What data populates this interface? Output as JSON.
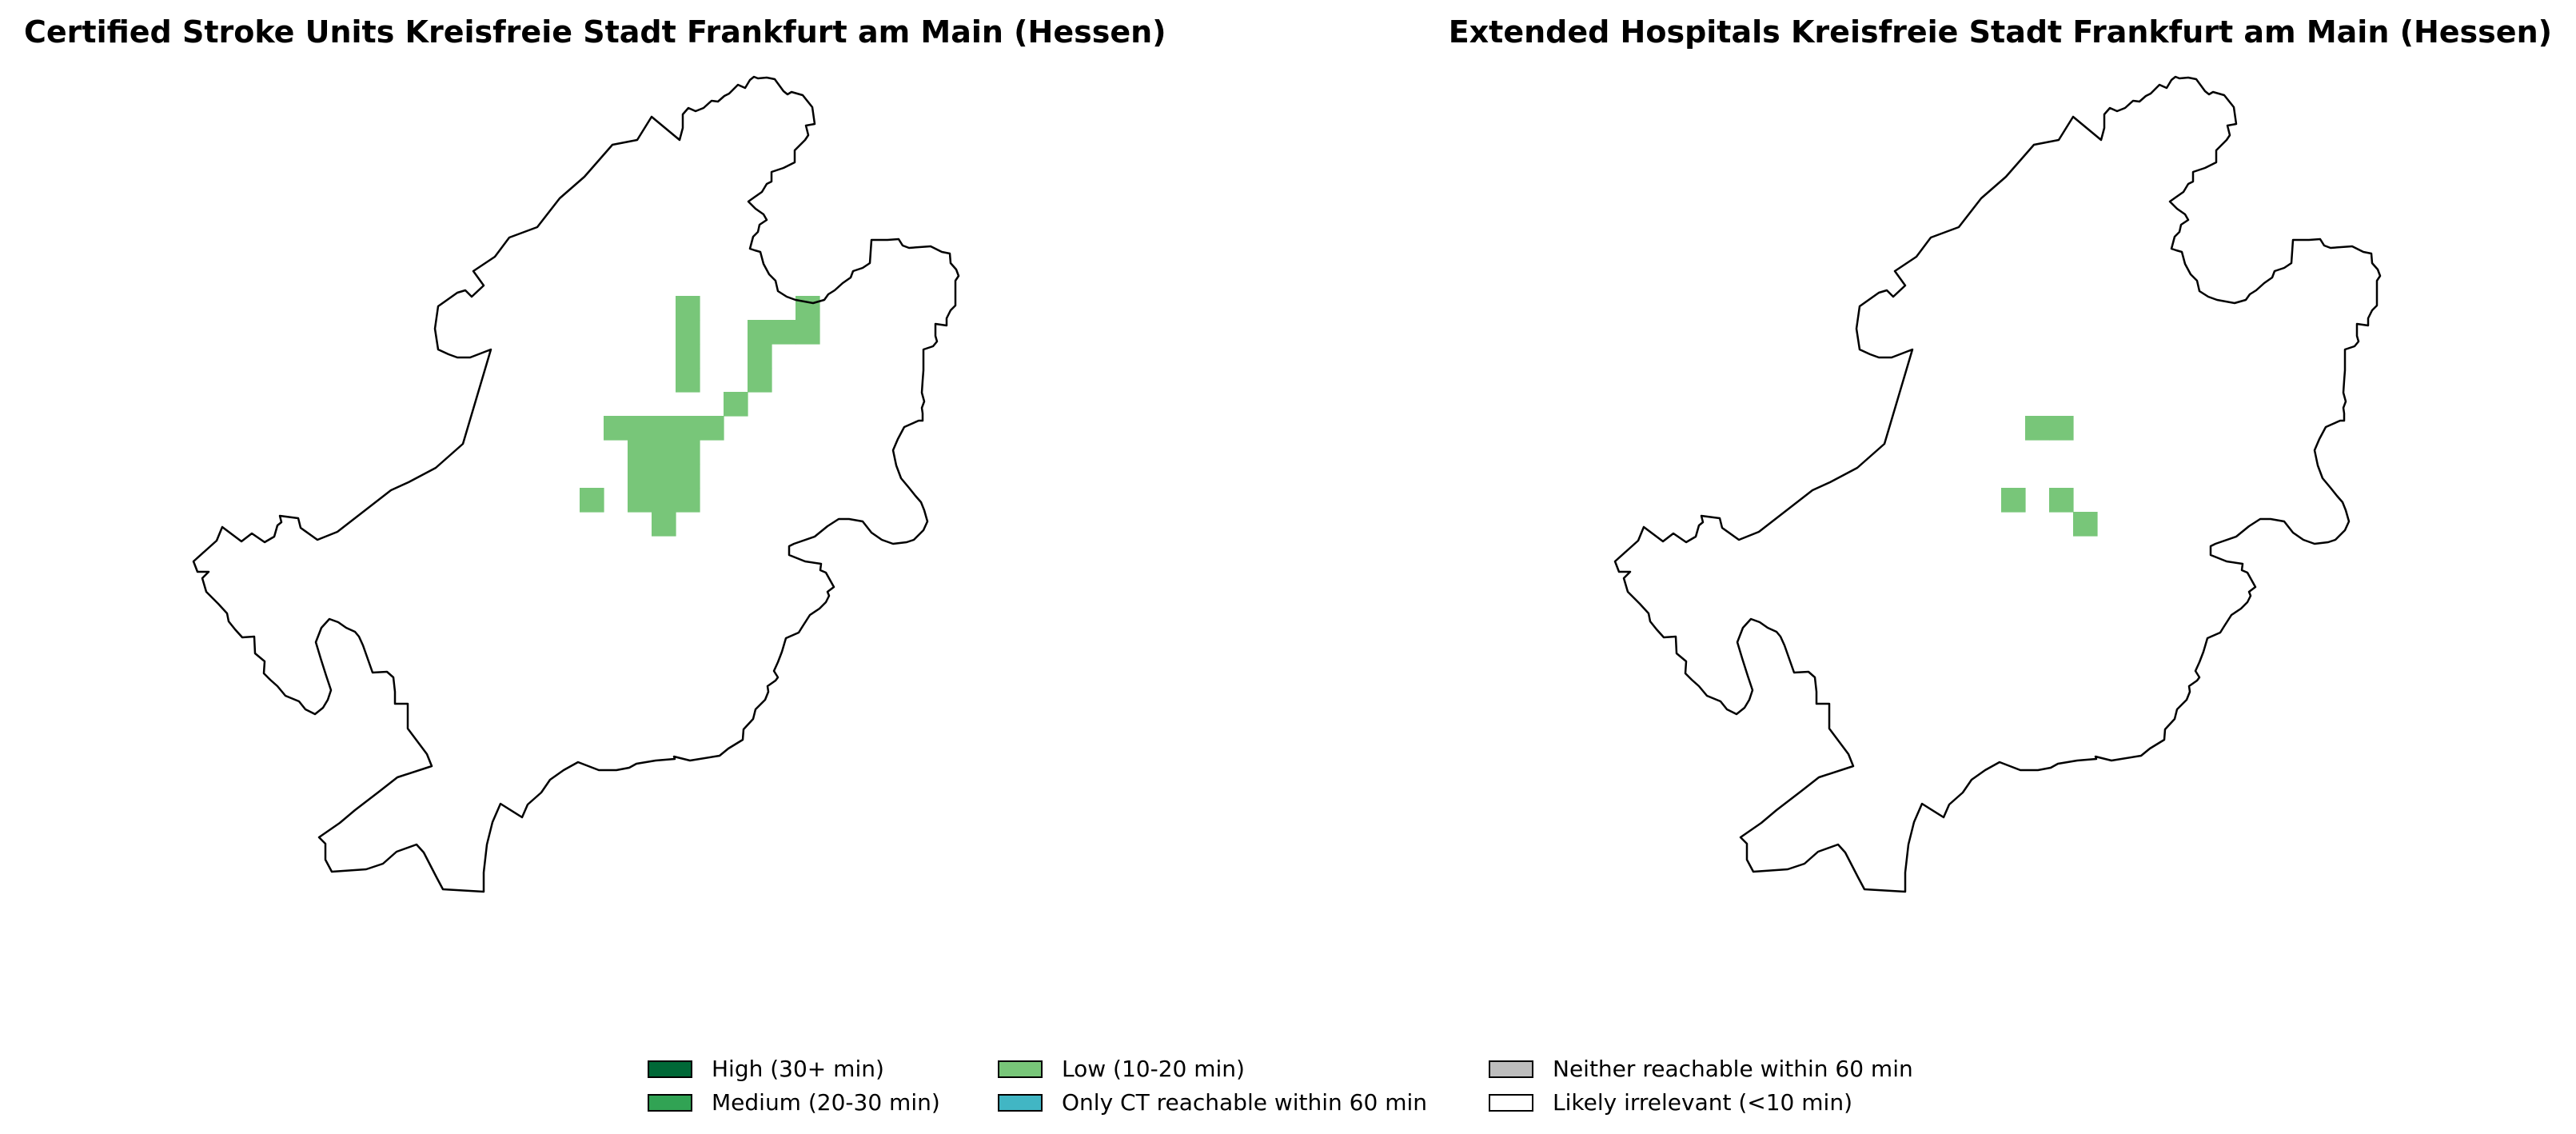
{
  "maps": [
    {
      "title": "Certified Stroke Units Kreisfreie Stadt Frankfurt am Main (Hessen)",
      "highlight_color": "#78c679"
    },
    {
      "title": "Extended Hospitals Kreisfreie Stadt Frankfurt am Main (Hessen)",
      "highlight_color": "#78c679"
    }
  ],
  "legend": {
    "items": [
      {
        "label": "High (30+ min)",
        "color": "#006837"
      },
      {
        "label": "Medium (20-30 min)",
        "color": "#31a354"
      },
      {
        "label": "Low (10-20 min)",
        "color": "#78c679"
      },
      {
        "label": "Only CT reachable within 60 min",
        "color": "#41b6c4"
      },
      {
        "label": "Neither reachable within 60 min",
        "color": "#bdbdbd"
      },
      {
        "label": "Likely irrelevant (<10 min)",
        "color": "#ffffff"
      }
    ]
  }
}
